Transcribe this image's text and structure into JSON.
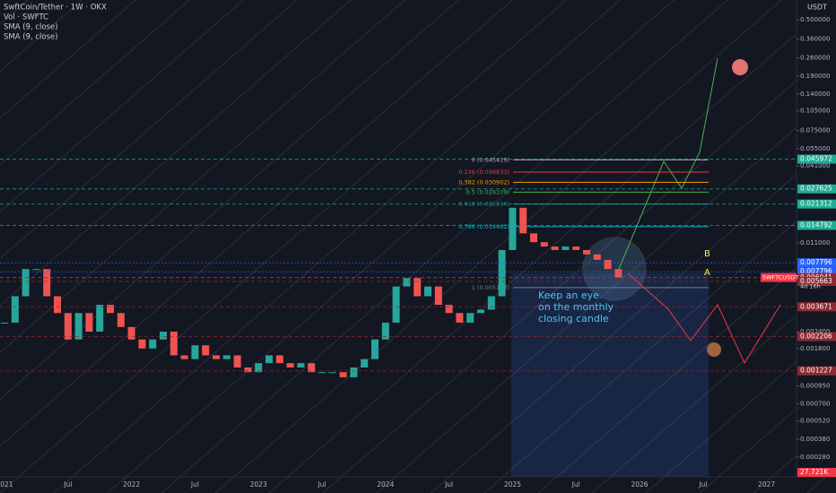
{
  "header": {
    "symbol": "SwftCoin/Tether · 1W · OKX",
    "indicators": [
      "Vol · SWFTC",
      "SMA (9, close)",
      "SMA (9, close)"
    ],
    "currency": "USDT"
  },
  "chart_data": {
    "type": "candlestick",
    "log_scale": true,
    "up_color": "#26a69a",
    "down_color": "#ef5350",
    "categories": [
      "2021",
      null,
      null,
      null,
      null,
      null,
      "Jul",
      null,
      null,
      null,
      null,
      null,
      "2022",
      null,
      null,
      null,
      null,
      null,
      "Jul",
      null,
      null,
      null,
      null,
      null,
      "2023",
      null,
      null,
      null,
      null,
      null,
      "Jul",
      null,
      null,
      null,
      null,
      null,
      "2024",
      null,
      null,
      null,
      null,
      null,
      "Jul",
      null,
      null,
      null,
      null,
      null,
      "2025",
      null,
      null,
      null,
      null,
      null,
      "Jul",
      null,
      null,
      null,
      null,
      null,
      "2026",
      null,
      null,
      null,
      null,
      null,
      "Jul",
      null,
      null,
      null,
      null,
      null,
      "2027",
      null,
      null,
      null
    ],
    "values": [
      0.0028,
      0.0044,
      0.007,
      0.007,
      0.0044,
      0.0033,
      0.0021,
      0.0033,
      0.0024,
      0.0038,
      0.0033,
      0.0026,
      0.0021,
      0.0018,
      0.0021,
      0.0024,
      0.0016,
      0.0015,
      0.0019,
      0.0016,
      0.0015,
      0.0016,
      0.0013,
      0.0012,
      0.0014,
      0.0016,
      0.0014,
      0.0013,
      0.0014,
      0.0012,
      0.0012,
      0.0012,
      0.0011,
      0.0013,
      0.0015,
      0.0021,
      0.0028,
      0.0052,
      0.006,
      0.0044,
      0.0052,
      0.0038,
      0.0033,
      0.0028,
      0.0033,
      0.0035,
      0.0044,
      0.0097,
      0.02,
      0.0129,
      0.0111,
      0.0103,
      0.0097,
      0.0103,
      0.0097,
      0.009,
      0.0082,
      0.007,
      0.006062,
      null,
      null,
      null,
      null,
      null,
      null,
      null,
      null,
      null,
      null,
      null,
      null,
      null,
      null,
      null,
      null,
      null
    ],
    "ylim": [
      0.0002,
      0.7
    ],
    "yticks": [
      {
        "value": 0.5,
        "label": "0.500000"
      },
      {
        "value": 0.36,
        "label": "0.360000"
      },
      {
        "value": 0.26,
        "label": "0.260000"
      },
      {
        "value": 0.19,
        "label": "0.190000"
      },
      {
        "value": 0.14,
        "label": "0.140000"
      },
      {
        "value": 0.105,
        "label": "0.105000"
      },
      {
        "value": 0.075,
        "label": "0.075000"
      },
      {
        "value": 0.055,
        "label": "0.055000"
      },
      {
        "value": 0.041,
        "label": "0.041000"
      },
      {
        "value": 0.011,
        "label": "0.011000"
      },
      {
        "value": 0.0024,
        "label": "0.002400"
      },
      {
        "value": 0.0018,
        "label": "0.001800"
      },
      {
        "value": 0.00095,
        "label": "0.000950"
      },
      {
        "value": 0.0007,
        "label": "0.000700"
      },
      {
        "value": 0.00052,
        "label": "0.000520"
      },
      {
        "value": 0.00038,
        "label": "0.000380"
      },
      {
        "value": 0.00028,
        "label": "0.000280"
      }
    ],
    "fib_levels": [
      {
        "value": 0.045419,
        "label": "0 (0.045419)",
        "color": "#b2b5be"
      },
      {
        "value": 0.036833,
        "label": "0.236 (0.036833)",
        "color": "#f23645"
      },
      {
        "value": 0.030902,
        "label": "0.382 (0.030902)",
        "color": "#ff9800"
      },
      {
        "value": 0.026109,
        "label": "0.5 (0.026109)",
        "color": "#4caf50"
      },
      {
        "value": 0.021316,
        "label": "0.618 (0.021316)",
        "color": "#089981"
      },
      {
        "value": 0.014482,
        "label": "0.786 (0.014482)",
        "color": "#00bcd4"
      },
      {
        "value": 0.0051,
        "label": "1 (0.005100)",
        "color": "#787b86"
      }
    ],
    "price_tags": [
      {
        "value": 0.045972,
        "color": "#22ab94"
      },
      {
        "value": 0.027625,
        "color": "#22ab94"
      },
      {
        "value": 0.021312,
        "color": "#22ab94"
      },
      {
        "value": 0.014792,
        "color": "#22ab94"
      },
      {
        "value": 0.007796,
        "color": "#2962ff"
      },
      {
        "value": 0.007796,
        "color": "#2962ff"
      },
      {
        "value": 0.006062,
        "color": "#f23645"
      },
      {
        "value": 0.006041,
        "color": "#8c2a33"
      },
      {
        "value": 0.005663,
        "color": "#8c2a33"
      },
      {
        "value": 0.003671,
        "color": "#8c2a33"
      },
      {
        "value": 0.002206,
        "color": "#8c2a33"
      },
      {
        "value": 0.001227,
        "color": "#8c2a33"
      }
    ],
    "symbol_tag": "SWFTCUSDT",
    "countdown": "4d 16h",
    "volume_tag": "27.721K",
    "annotation": [
      "Keep an eye",
      "on the monthly",
      "closing candle"
    ],
    "point_a": "A",
    "point_b": "B"
  }
}
